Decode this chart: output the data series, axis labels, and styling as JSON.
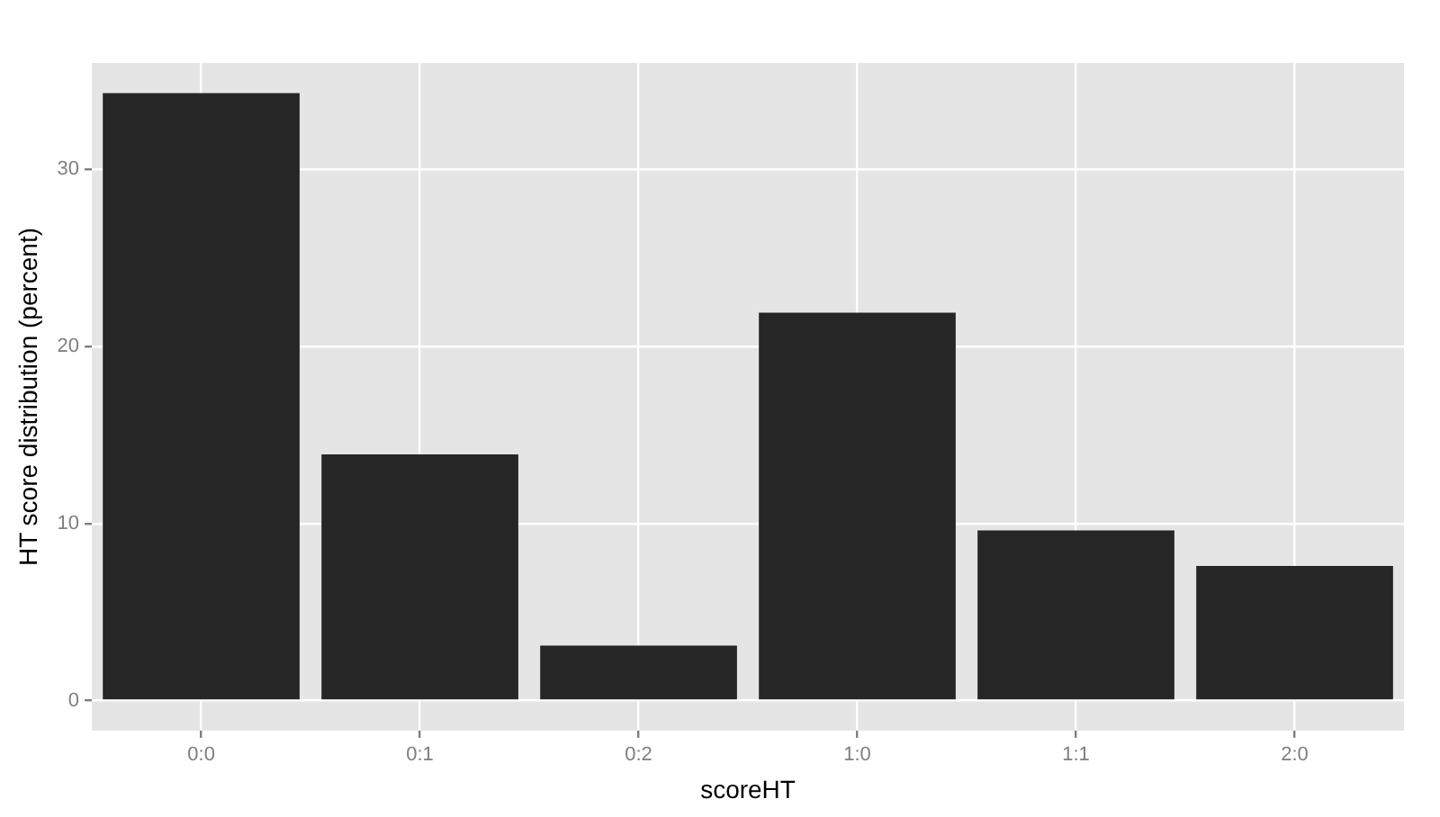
{
  "chart_data": {
    "type": "bar",
    "xlabel": "scoreHT",
    "ylabel": "HT score distribution (percent)",
    "categories": [
      "0:0",
      "0:1",
      "0:2",
      "1:0",
      "1:1",
      "2:0"
    ],
    "values": [
      34.3,
      13.9,
      3.1,
      21.9,
      9.6,
      7.6
    ],
    "color": "#262626",
    "ylim": [
      -1.7,
      36
    ],
    "yticks": [
      0,
      10,
      20,
      30
    ],
    "grid": true,
    "legend": false
  }
}
